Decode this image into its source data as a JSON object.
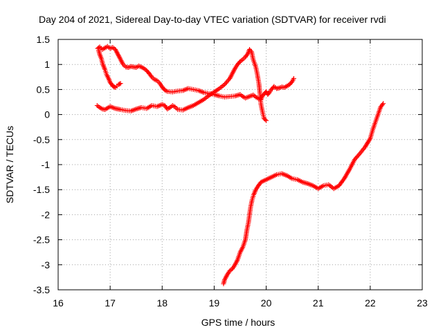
{
  "chart_data": {
    "type": "scatter",
    "title": "Day 204 of 2021, Sidereal Day-to-day VTEC variation (SDTVAR) for receiver rvdi",
    "xlabel": "GPS time / hours",
    "ylabel": "SDTVAR / TECUs",
    "xlim": [
      16,
      23
    ],
    "ylim": [
      -3.5,
      1.5
    ],
    "xticks": [
      "16",
      "17",
      "18",
      "19",
      "20",
      "21",
      "22",
      "23"
    ],
    "yticks": [
      "1.5",
      "1",
      "0.5",
      "0",
      "-0.5",
      "-1",
      "-1.5",
      "-2",
      "-2.5",
      "-3",
      "-3.5"
    ],
    "grid": true,
    "marker": "+",
    "color": "#ff0000",
    "series": [
      {
        "points": [
          [
            16.78,
            1.28
          ],
          [
            16.8,
            1.2
          ],
          [
            16.83,
            1.12
          ],
          [
            16.86,
            1.0
          ],
          [
            16.9,
            0.9
          ],
          [
            16.93,
            0.8
          ],
          [
            16.97,
            0.72
          ],
          [
            17.0,
            0.64
          ],
          [
            17.03,
            0.6
          ],
          [
            17.06,
            0.56
          ],
          [
            17.1,
            0.54
          ],
          [
            17.13,
            0.57
          ],
          [
            17.16,
            0.6
          ],
          [
            17.2,
            0.62
          ]
        ]
      },
      {
        "points": [
          [
            16.76,
            1.32
          ],
          [
            16.8,
            1.35
          ],
          [
            16.85,
            1.3
          ],
          [
            16.9,
            1.33
          ],
          [
            16.95,
            1.36
          ],
          [
            17.0,
            1.32
          ],
          [
            17.05,
            1.34
          ],
          [
            17.1,
            1.3
          ],
          [
            17.15,
            1.2
          ],
          [
            17.2,
            1.1
          ],
          [
            17.25,
            1.0
          ],
          [
            17.3,
            0.95
          ],
          [
            17.35,
            0.94
          ],
          [
            17.4,
            0.96
          ],
          [
            17.45,
            0.95
          ],
          [
            17.5,
            0.94
          ],
          [
            17.55,
            0.97
          ],
          [
            17.6,
            0.95
          ],
          [
            17.65,
            0.92
          ],
          [
            17.7,
            0.88
          ],
          [
            17.75,
            0.82
          ],
          [
            17.8,
            0.75
          ],
          [
            17.85,
            0.7
          ],
          [
            17.9,
            0.68
          ],
          [
            17.95,
            0.63
          ],
          [
            18.0,
            0.55
          ],
          [
            18.05,
            0.49
          ],
          [
            18.1,
            0.46
          ],
          [
            18.2,
            0.45
          ],
          [
            18.3,
            0.47
          ],
          [
            18.4,
            0.48
          ],
          [
            18.5,
            0.52
          ],
          [
            18.6,
            0.5
          ],
          [
            18.7,
            0.48
          ],
          [
            18.8,
            0.44
          ],
          [
            18.9,
            0.42
          ],
          [
            19.0,
            0.4
          ],
          [
            19.1,
            0.37
          ],
          [
            19.2,
            0.35
          ],
          [
            19.3,
            0.36
          ],
          [
            19.4,
            0.37
          ],
          [
            19.5,
            0.4
          ],
          [
            19.55,
            0.36
          ],
          [
            19.6,
            0.33
          ],
          [
            19.65,
            0.35
          ],
          [
            19.7,
            0.37
          ],
          [
            19.75,
            0.39
          ],
          [
            19.8,
            0.35
          ],
          [
            19.85,
            0.32
          ],
          [
            19.9,
            0.3
          ],
          [
            19.93,
            0.38
          ],
          [
            19.97,
            0.42
          ],
          [
            20.0,
            0.46
          ],
          [
            20.03,
            0.4
          ],
          [
            20.06,
            0.44
          ],
          [
            20.1,
            0.5
          ],
          [
            20.15,
            0.56
          ],
          [
            20.2,
            0.52
          ],
          [
            20.25,
            0.53
          ],
          [
            20.3,
            0.55
          ],
          [
            20.35,
            0.54
          ],
          [
            20.4,
            0.57
          ],
          [
            20.45,
            0.6
          ],
          [
            20.5,
            0.66
          ],
          [
            20.53,
            0.72
          ]
        ]
      },
      {
        "points": [
          [
            16.75,
            0.18
          ],
          [
            16.8,
            0.14
          ],
          [
            16.85,
            0.11
          ],
          [
            16.9,
            0.1
          ],
          [
            16.95,
            0.13
          ],
          [
            17.0,
            0.16
          ],
          [
            17.05,
            0.14
          ],
          [
            17.1,
            0.12
          ],
          [
            17.15,
            0.11
          ],
          [
            17.2,
            0.1
          ],
          [
            17.3,
            0.08
          ],
          [
            17.4,
            0.07
          ],
          [
            17.5,
            0.11
          ],
          [
            17.6,
            0.14
          ],
          [
            17.7,
            0.12
          ],
          [
            17.8,
            0.18
          ],
          [
            17.9,
            0.16
          ],
          [
            18.0,
            0.2
          ],
          [
            18.05,
            0.18
          ],
          [
            18.1,
            0.11
          ],
          [
            18.15,
            0.14
          ],
          [
            18.2,
            0.18
          ],
          [
            18.25,
            0.15
          ],
          [
            18.3,
            0.1
          ],
          [
            18.4,
            0.09
          ],
          [
            18.5,
            0.14
          ],
          [
            18.6,
            0.18
          ],
          [
            18.7,
            0.24
          ],
          [
            18.8,
            0.3
          ],
          [
            18.9,
            0.38
          ],
          [
            19.0,
            0.45
          ],
          [
            19.1,
            0.52
          ],
          [
            19.2,
            0.6
          ],
          [
            19.3,
            0.72
          ],
          [
            19.35,
            0.82
          ],
          [
            19.4,
            0.92
          ],
          [
            19.45,
            1.0
          ],
          [
            19.5,
            1.06
          ],
          [
            19.55,
            1.1
          ],
          [
            19.6,
            1.15
          ],
          [
            19.65,
            1.22
          ],
          [
            19.68,
            1.3
          ],
          [
            19.72,
            1.25
          ],
          [
            19.75,
            1.1
          ],
          [
            19.8,
            0.95
          ],
          [
            19.83,
            0.8
          ],
          [
            19.86,
            0.62
          ],
          [
            19.88,
            0.42
          ],
          [
            19.9,
            0.2
          ],
          [
            19.93,
            0.05
          ],
          [
            19.96,
            -0.08
          ],
          [
            20.0,
            -0.12
          ]
        ]
      },
      {
        "points": [
          [
            19.18,
            -3.38
          ],
          [
            19.2,
            -3.3
          ],
          [
            19.25,
            -3.2
          ],
          [
            19.3,
            -3.12
          ],
          [
            19.35,
            -3.08
          ],
          [
            19.4,
            -3.0
          ],
          [
            19.45,
            -2.9
          ],
          [
            19.5,
            -2.75
          ],
          [
            19.55,
            -2.65
          ],
          [
            19.6,
            -2.5
          ],
          [
            19.63,
            -2.3
          ],
          [
            19.66,
            -2.15
          ],
          [
            19.68,
            -2.0
          ],
          [
            19.7,
            -1.85
          ],
          [
            19.73,
            -1.7
          ],
          [
            19.76,
            -1.6
          ],
          [
            19.8,
            -1.5
          ],
          [
            19.85,
            -1.42
          ],
          [
            19.9,
            -1.35
          ],
          [
            20.0,
            -1.3
          ],
          [
            20.1,
            -1.25
          ],
          [
            20.2,
            -1.2
          ],
          [
            20.3,
            -1.18
          ],
          [
            20.4,
            -1.22
          ],
          [
            20.5,
            -1.28
          ],
          [
            20.6,
            -1.3
          ],
          [
            20.7,
            -1.35
          ],
          [
            20.8,
            -1.38
          ],
          [
            20.9,
            -1.42
          ],
          [
            21.0,
            -1.48
          ],
          [
            21.1,
            -1.42
          ],
          [
            21.2,
            -1.4
          ],
          [
            21.3,
            -1.48
          ],
          [
            21.4,
            -1.42
          ],
          [
            21.5,
            -1.28
          ],
          [
            21.6,
            -1.1
          ],
          [
            21.7,
            -0.9
          ],
          [
            21.8,
            -0.78
          ],
          [
            21.9,
            -0.65
          ],
          [
            22.0,
            -0.48
          ],
          [
            22.05,
            -0.3
          ],
          [
            22.1,
            -0.15
          ],
          [
            22.15,
            0.0
          ],
          [
            22.2,
            0.15
          ],
          [
            22.25,
            0.22
          ]
        ]
      }
    ]
  }
}
